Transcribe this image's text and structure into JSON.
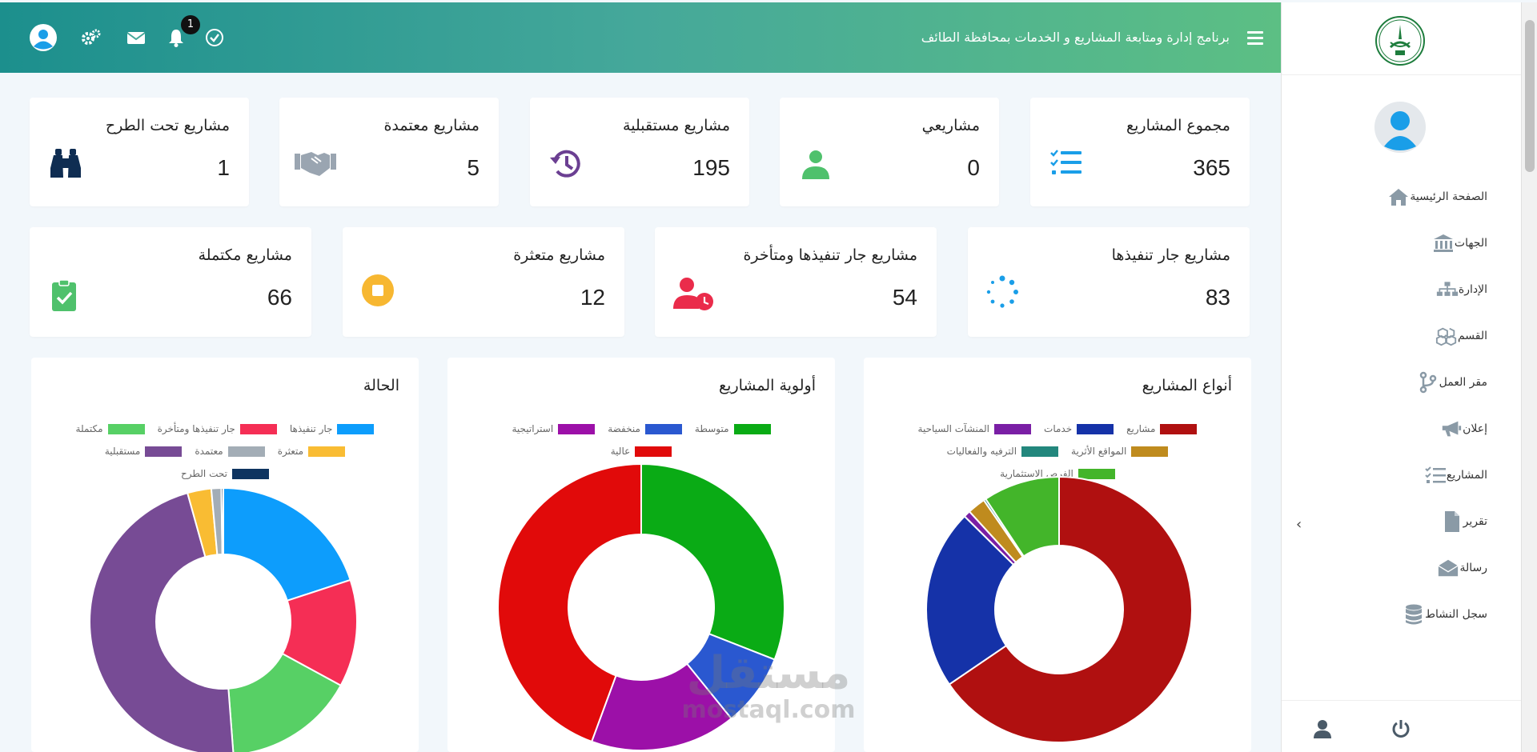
{
  "header": {
    "title": "برنامج إدارة ومتابعة المشاريع و الخدمات بمحافظة الطائف",
    "notification_count": "1"
  },
  "stats_row1": [
    {
      "title": "مجموع المشاريع",
      "value": "365",
      "icon": "tasks-list-icon",
      "color": "#1a9ee8"
    },
    {
      "title": "مشاريعي",
      "value": "0",
      "icon": "user-icon",
      "color": "#4fc16c"
    },
    {
      "title": "مشاريع مستقبلية",
      "value": "195",
      "icon": "history-icon",
      "color": "#6b3f92"
    },
    {
      "title": "مشاريع معتمدة",
      "value": "5",
      "icon": "handshake-icon",
      "color": "#9aa5b1"
    },
    {
      "title": "مشاريع تحت الطرح",
      "value": "1",
      "icon": "binoculars-icon",
      "color": "#0f2d52"
    }
  ],
  "stats_row2": [
    {
      "title": "مشاريع جار تنفيذها",
      "value": "83",
      "icon": "spinner-icon",
      "color": "#1a9ee8"
    },
    {
      "title": "مشاريع جار تنفيذها ومتأخرة",
      "value": "54",
      "icon": "user-clock-icon",
      "color": "#ea2c4b"
    },
    {
      "title": "مشاريع متعثرة",
      "value": "12",
      "icon": "stop-circle-icon",
      "color": "#f7b731"
    },
    {
      "title": "مشاريع مكتملة",
      "value": "66",
      "icon": "clipboard-check-icon",
      "color": "#4fc16c"
    }
  ],
  "sidebar": {
    "items": [
      {
        "label": "الصفحة الرئيسية",
        "icon": "home-icon"
      },
      {
        "label": "الجهات",
        "icon": "bank-icon"
      },
      {
        "label": "الإدارة",
        "icon": "sitemap-icon"
      },
      {
        "label": "القسم",
        "icon": "cubes-icon"
      },
      {
        "label": "مقر العمل",
        "icon": "code-branch-icon"
      },
      {
        "label": "إعلان",
        "icon": "bullhorn-icon"
      },
      {
        "label": "المشاريع",
        "icon": "tasks-list-icon"
      },
      {
        "label": "تقرير",
        "icon": "file-icon"
      },
      {
        "label": "رسالة",
        "icon": "envelope-open-icon"
      },
      {
        "label": "سجل النشاط",
        "icon": "database-icon"
      }
    ]
  },
  "chart_data": [
    {
      "type": "pie",
      "title": "أنواع المشاريع",
      "donut": true,
      "categories": [
        "مشاريع",
        "خدمات",
        "المنشآت السياحية",
        "المواقع الأثرية",
        "الترفيه والفعاليات",
        "الفرص الاستثمارية"
      ],
      "values": [
        239,
        80,
        3,
        8,
        1,
        34
      ],
      "colors": [
        "#b01010",
        "#1532a8",
        "#7a1fa5",
        "#bf8b1e",
        "#23877d",
        "#43b52a"
      ]
    },
    {
      "type": "pie",
      "title": "أولوية المشاريع",
      "donut": true,
      "categories": [
        "متوسطة",
        "منخفضة",
        "استراتيجية",
        "عالية"
      ],
      "values": [
        113,
        30,
        60,
        162
      ],
      "colors": [
        "#0aab15",
        "#2a58d0",
        "#9c10a8",
        "#e10a0a"
      ]
    },
    {
      "type": "pie",
      "title": "الحالة",
      "donut": true,
      "categories": [
        "جار تنفيذها",
        "جار تنفيذها ومتأخرة",
        "مكتملة",
        "متعثرة",
        "معتمدة",
        "مستقبلية",
        "تحت الطرح"
      ],
      "values": [
        83,
        54,
        66,
        12,
        5,
        195,
        1
      ],
      "colors": [
        "#0d9dfc",
        "#f52e55",
        "#57d065",
        "#f9bc33",
        "#a3adb6",
        "#774b95",
        "#0e3460"
      ],
      "draw_order": [
        0,
        1,
        2,
        5,
        3,
        4,
        6
      ]
    }
  ],
  "watermark": {
    "line1": "مستقل",
    "line2": "mostaql.com"
  }
}
